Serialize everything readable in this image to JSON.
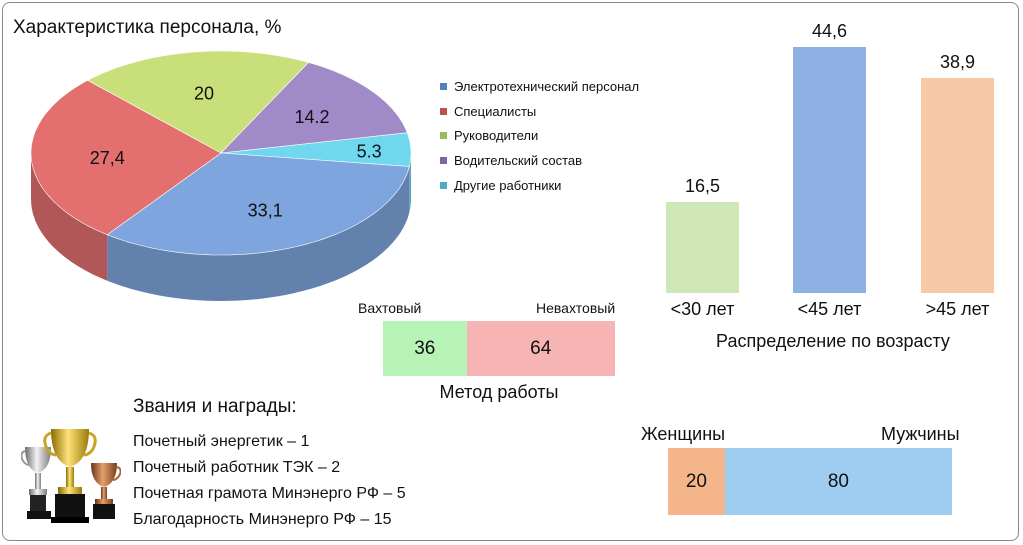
{
  "colors": {
    "blue": "#7ea5dd",
    "red": "#e36f6f",
    "green": "#c9e07a",
    "purple": "#a08bc8",
    "cyan": "#6fd8ee",
    "age_green": "#cfe6b7",
    "age_blue": "#8fb0e4",
    "age_orange": "#f8c9a6",
    "method_green": "#b7f3b7",
    "method_red": "#f7b4b4",
    "gender_orange": "#f4b58a",
    "gender_blue": "#9fcdf2"
  },
  "chart_data": [
    {
      "type": "pie",
      "title": "Характеристика персонала, %",
      "labels": [
        "Электротехнический персонал",
        "Специалисты",
        "Руководители",
        "Водительский состав",
        "Другие работники"
      ],
      "values": [
        33.1,
        27.4,
        20,
        14.2,
        5.3
      ],
      "value_labels": [
        "33,1",
        "27,4",
        "20",
        "14.2",
        "5.3"
      ],
      "colors": [
        "#7ea5dd",
        "#e36f6f",
        "#c9e07a",
        "#a08bc8",
        "#6fd8ee"
      ],
      "legend": "right",
      "style": "3d"
    },
    {
      "type": "bar",
      "title": "Распределение по возрасту",
      "categories": [
        "<30 лет",
        "<45 лет",
        ">45 лет"
      ],
      "values": [
        16.5,
        44.6,
        38.9
      ],
      "value_labels": [
        "16,5",
        "44,6",
        "38,9"
      ],
      "colors": [
        "#cfe6b7",
        "#8fb0e4",
        "#f8c9a6"
      ],
      "ylim": [
        0,
        44.6
      ],
      "grid": false
    },
    {
      "type": "bar",
      "orientation": "stacked-horizontal",
      "title": "Метод работы",
      "categories": [
        "Вахтовый",
        "Невахтовый"
      ],
      "values": [
        36,
        64
      ],
      "value_labels": [
        "36",
        "64"
      ],
      "colors": [
        "#b7f3b7",
        "#f7b4b4"
      ]
    },
    {
      "type": "bar",
      "orientation": "stacked-horizontal",
      "title": "",
      "categories": [
        "Женщины",
        "Мужчины"
      ],
      "values": [
        20,
        80
      ],
      "value_labels": [
        "20",
        "80"
      ],
      "colors": [
        "#f4b58a",
        "#9fcdf2"
      ]
    }
  ],
  "awards": {
    "heading": "Звания и награды:",
    "items": [
      "Почетный энергетик  –  1",
      "Почетный работник ТЭК –  2",
      "Почетная грамота Минэнерго РФ – 5",
      "Благодарность  Минэнерго РФ – 15"
    ],
    "icon": "trophy-cups-icon"
  }
}
